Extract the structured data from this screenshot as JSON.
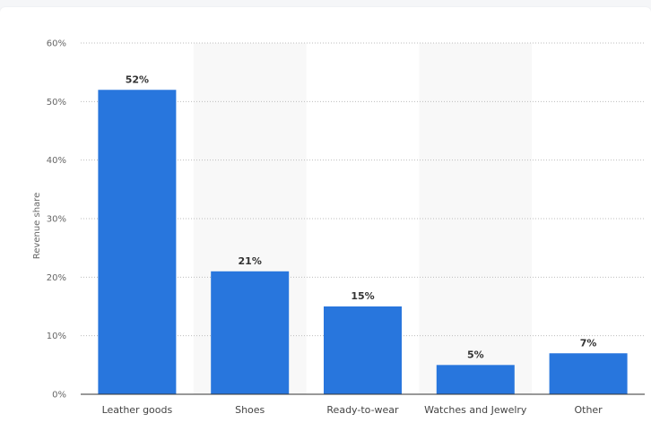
{
  "chart_data": {
    "type": "bar",
    "ylabel": "Revenue share",
    "categories": [
      "Leather goods",
      "Shoes",
      "Ready-to-wear",
      "Watches and Jewelry",
      "Other"
    ],
    "values": [
      52,
      21,
      15,
      5,
      7
    ],
    "value_labels": [
      "52%",
      "21%",
      "15%",
      "5%",
      "7%"
    ],
    "yticks": [
      "0%",
      "10%",
      "20%",
      "30%",
      "40%",
      "50%",
      "60%"
    ],
    "ylim": [
      0,
      60
    ],
    "grid": true,
    "bar_color": "#2876dd",
    "alt_band_color": "#f8f8f8"
  }
}
